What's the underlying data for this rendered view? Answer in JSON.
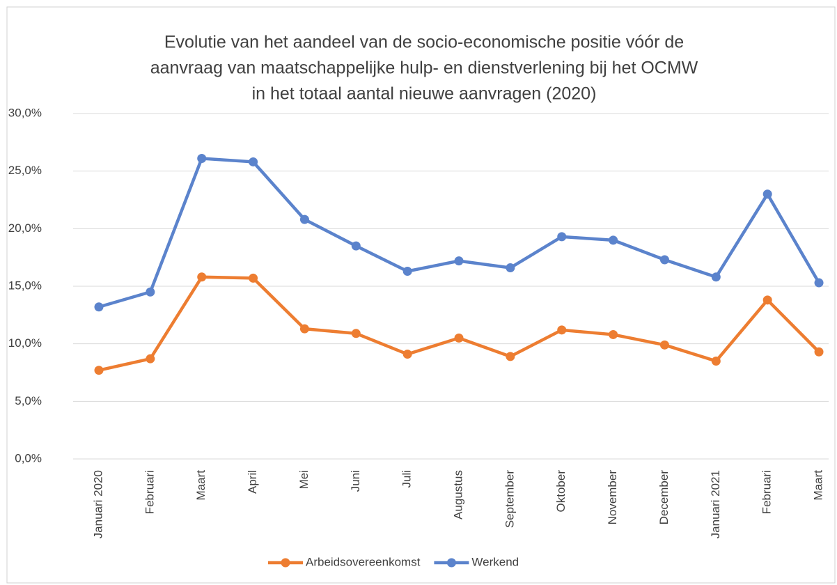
{
  "chart_data": {
    "type": "line",
    "title": [
      "Evolutie van het aandeel van de socio-economische positie vóór de",
      "aanvraag van maatschappelijke hulp- en dienstverlening bij het OCMW",
      "in het totaal aantal nieuwe aanvragen (2020)"
    ],
    "categories": [
      "Januari 2020",
      "Februari",
      "Maart",
      "April",
      "Mei",
      "Juni",
      "Juli",
      "Augustus",
      "September",
      "Oktober",
      "November",
      "December",
      "Januari 2021",
      "Februari",
      "Maart"
    ],
    "series": [
      {
        "name": "Arbeidsovereenkomst",
        "color": "#ed7d31",
        "values": [
          7.7,
          8.7,
          15.8,
          15.7,
          11.3,
          10.9,
          9.1,
          10.5,
          8.9,
          11.2,
          10.8,
          9.9,
          8.5,
          13.8,
          9.3
        ]
      },
      {
        "name": "Werkend",
        "color": "#5b83cc",
        "values": [
          13.2,
          14.5,
          26.1,
          25.8,
          20.8,
          18.5,
          16.3,
          17.2,
          16.6,
          19.3,
          19.0,
          17.3,
          15.8,
          23.0,
          15.3
        ]
      }
    ],
    "ylim": [
      0,
      30
    ],
    "yticks": [
      {
        "value": 0,
        "label": "0,0%"
      },
      {
        "value": 5,
        "label": "5,0%"
      },
      {
        "value": 10,
        "label": "10,0%"
      },
      {
        "value": 15,
        "label": "15,0%"
      },
      {
        "value": 20,
        "label": "20,0%"
      },
      {
        "value": 25,
        "label": "25,0%"
      },
      {
        "value": 30,
        "label": "30,0%"
      }
    ],
    "grid": true,
    "legend": "bottom"
  }
}
